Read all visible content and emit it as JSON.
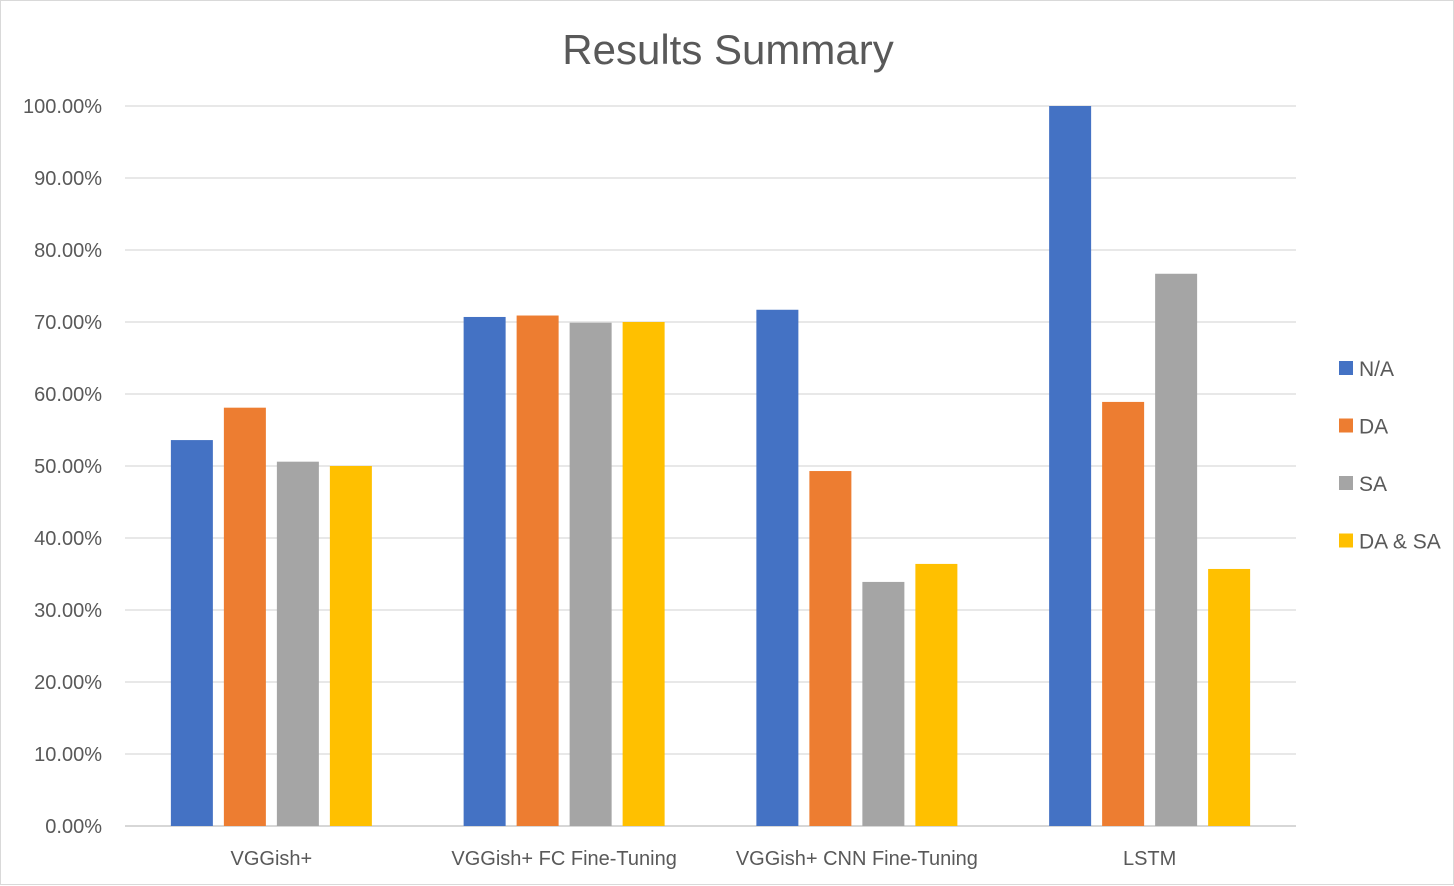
{
  "chart_data": {
    "type": "bar",
    "title": "Results Summary",
    "xlabel": "",
    "ylabel": "",
    "ylim": [
      0,
      1
    ],
    "y_ticks": [
      "0.00%",
      "10.00%",
      "20.00%",
      "30.00%",
      "40.00%",
      "50.00%",
      "60.00%",
      "70.00%",
      "80.00%",
      "90.00%",
      "100.00%"
    ],
    "categories": [
      "VGGish+",
      "VGGish+ FC Fine-Tuning",
      "VGGish+ CNN Fine-Tuning",
      "LSTM"
    ],
    "series": [
      {
        "name": "N/A",
        "color": "#4472C4",
        "values": [
          0.536,
          0.707,
          0.717,
          1.0
        ]
      },
      {
        "name": "DA",
        "color": "#ED7D31",
        "values": [
          0.581,
          0.709,
          0.493,
          0.589
        ]
      },
      {
        "name": "SA",
        "color": "#A5A5A5",
        "values": [
          0.506,
          0.699,
          0.339,
          0.767
        ]
      },
      {
        "name": "DA & SA",
        "color": "#FFC000",
        "values": [
          0.5,
          0.7,
          0.364,
          0.357
        ]
      }
    ],
    "grid": true,
    "legend_position": "right"
  }
}
